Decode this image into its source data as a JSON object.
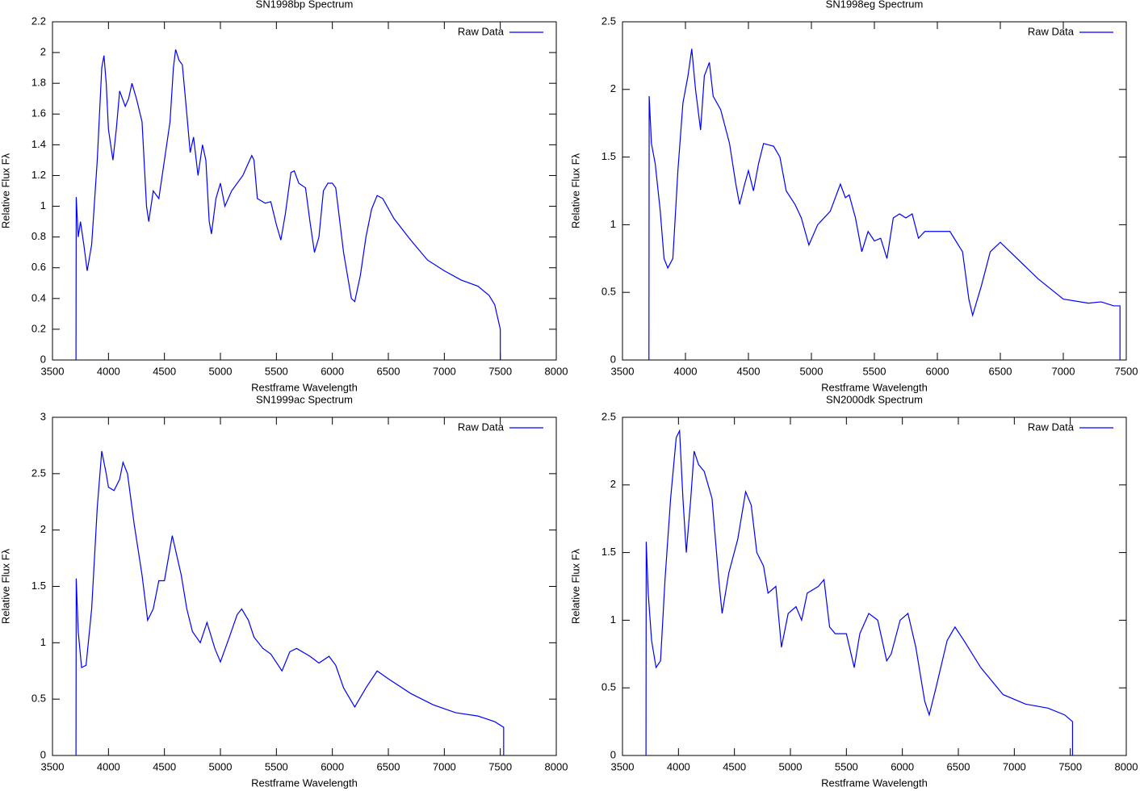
{
  "chart_data": [
    {
      "type": "line",
      "title": "SN1998bp Spectrum",
      "x_label": "Restframe Wavelength",
      "y_label": "Relative Flux Fλ",
      "x": [
        3710,
        3712,
        3730,
        3750,
        3780,
        3810,
        3850,
        3900,
        3940,
        3960,
        3980,
        4000,
        4040,
        4070,
        4100,
        4150,
        4180,
        4210,
        4250,
        4300,
        4340,
        4360,
        4400,
        4450,
        4500,
        4550,
        4580,
        4600,
        4630,
        4660,
        4700,
        4730,
        4760,
        4800,
        4840,
        4870,
        4900,
        4920,
        4960,
        5000,
        5040,
        5100,
        5200,
        5280,
        5300,
        5330,
        5400,
        5450,
        5500,
        5540,
        5580,
        5630,
        5660,
        5700,
        5760,
        5800,
        5840,
        5880,
        5920,
        5960,
        6000,
        6030,
        6100,
        6170,
        6200,
        6250,
        6300,
        6350,
        6400,
        6450,
        6550,
        6700,
        6850,
        7000,
        7150,
        7300,
        7400,
        7450,
        7500,
        7500
      ],
      "series": [
        {
          "name": "Raw Data",
          "color": "#0000ff",
          "values": [
            0,
            1.06,
            0.8,
            0.9,
            0.75,
            0.58,
            0.75,
            1.3,
            1.9,
            1.98,
            1.8,
            1.5,
            1.3,
            1.5,
            1.75,
            1.65,
            1.7,
            1.8,
            1.7,
            1.55,
            1.0,
            0.9,
            1.1,
            1.05,
            1.3,
            1.55,
            1.9,
            2.02,
            1.95,
            1.92,
            1.6,
            1.35,
            1.45,
            1.2,
            1.4,
            1.3,
            0.9,
            0.82,
            1.05,
            1.15,
            1.0,
            1.1,
            1.2,
            1.33,
            1.3,
            1.05,
            1.02,
            1.03,
            0.88,
            0.78,
            0.95,
            1.22,
            1.23,
            1.15,
            1.12,
            0.9,
            0.7,
            0.8,
            1.1,
            1.15,
            1.15,
            1.12,
            0.7,
            0.4,
            0.38,
            0.55,
            0.8,
            0.98,
            1.07,
            1.05,
            0.92,
            0.78,
            0.65,
            0.58,
            0.52,
            0.48,
            0.42,
            0.36,
            0.2,
            0
          ]
        }
      ],
      "xlim": [
        3500,
        8000
      ],
      "ylim": [
        0,
        2.2
      ],
      "xticks": [
        3500,
        4000,
        4500,
        5000,
        5500,
        6000,
        6500,
        7000,
        7500,
        8000
      ],
      "yticks": [
        0,
        0.2,
        0.4,
        0.6,
        0.8,
        1,
        1.2,
        1.4,
        1.6,
        1.8,
        2,
        2.2
      ],
      "legend": "upper right"
    },
    {
      "type": "line",
      "title": "SN1998eg Spectrum",
      "x_label": "Restframe Wavelength",
      "y_label": "Relative Flux Fλ",
      "x": [
        3710,
        3712,
        3730,
        3760,
        3800,
        3830,
        3860,
        3900,
        3940,
        3980,
        4020,
        4050,
        4080,
        4120,
        4150,
        4190,
        4220,
        4280,
        4350,
        4400,
        4430,
        4470,
        4500,
        4540,
        4580,
        4620,
        4700,
        4750,
        4800,
        4870,
        4920,
        4980,
        5050,
        5150,
        5230,
        5270,
        5300,
        5350,
        5400,
        5450,
        5500,
        5550,
        5600,
        5650,
        5700,
        5750,
        5800,
        5850,
        5900,
        6000,
        6100,
        6200,
        6250,
        6280,
        6350,
        6420,
        6500,
        6600,
        6800,
        7000,
        7200,
        7300,
        7400,
        7450,
        7450
      ],
      "series": [
        {
          "name": "Raw Data",
          "color": "#0000ff",
          "values": [
            0,
            1.95,
            1.6,
            1.45,
            1.1,
            0.75,
            0.68,
            0.75,
            1.4,
            1.9,
            2.1,
            2.3,
            2.0,
            1.7,
            2.1,
            2.2,
            1.95,
            1.85,
            1.6,
            1.3,
            1.15,
            1.3,
            1.4,
            1.25,
            1.45,
            1.6,
            1.58,
            1.5,
            1.25,
            1.15,
            1.05,
            0.85,
            1.0,
            1.1,
            1.3,
            1.2,
            1.22,
            1.05,
            0.8,
            0.95,
            0.88,
            0.9,
            0.75,
            1.05,
            1.08,
            1.05,
            1.08,
            0.9,
            0.95,
            0.95,
            0.95,
            0.8,
            0.45,
            0.33,
            0.55,
            0.8,
            0.87,
            0.78,
            0.6,
            0.45,
            0.42,
            0.43,
            0.4,
            0.4,
            0
          ]
        }
      ],
      "xlim": [
        3500,
        7500
      ],
      "ylim": [
        0,
        2.5
      ],
      "xticks": [
        3500,
        4000,
        4500,
        5000,
        5500,
        6000,
        6500,
        7000,
        7500
      ],
      "yticks": [
        0,
        0.5,
        1,
        1.5,
        2,
        2.5
      ],
      "legend": "upper right"
    },
    {
      "type": "line",
      "title": "SN1999ac Spectrum",
      "x_label": "Restframe Wavelength",
      "y_label": "Relative Flux Fλ",
      "x": [
        3710,
        3712,
        3730,
        3760,
        3800,
        3850,
        3900,
        3940,
        3980,
        4000,
        4050,
        4100,
        4130,
        4170,
        4230,
        4300,
        4350,
        4400,
        4450,
        4500,
        4570,
        4650,
        4700,
        4750,
        4820,
        4880,
        4950,
        5000,
        5080,
        5150,
        5190,
        5250,
        5300,
        5380,
        5450,
        5550,
        5620,
        5680,
        5800,
        5880,
        5970,
        6030,
        6100,
        6200,
        6300,
        6400,
        6500,
        6700,
        6900,
        7100,
        7300,
        7450,
        7530,
        7530
      ],
      "series": [
        {
          "name": "Raw Data",
          "color": "#0000ff",
          "values": [
            0,
            1.57,
            1.1,
            0.78,
            0.8,
            1.3,
            2.2,
            2.7,
            2.5,
            2.38,
            2.35,
            2.45,
            2.6,
            2.5,
            2.05,
            1.6,
            1.2,
            1.3,
            1.55,
            1.55,
            1.95,
            1.6,
            1.3,
            1.1,
            1.0,
            1.18,
            0.95,
            0.83,
            1.05,
            1.25,
            1.3,
            1.2,
            1.05,
            0.95,
            0.9,
            0.75,
            0.92,
            0.95,
            0.88,
            0.82,
            0.88,
            0.8,
            0.6,
            0.43,
            0.6,
            0.75,
            0.68,
            0.55,
            0.45,
            0.38,
            0.35,
            0.3,
            0.25,
            0
          ]
        }
      ],
      "xlim": [
        3500,
        8000
      ],
      "ylim": [
        0,
        3
      ],
      "xticks": [
        3500,
        4000,
        4500,
        5000,
        5500,
        6000,
        6500,
        7000,
        7500,
        8000
      ],
      "yticks": [
        0,
        0.5,
        1,
        1.5,
        2,
        2.5,
        3
      ],
      "legend": "upper right"
    },
    {
      "type": "line",
      "title": "SN2000dk Spectrum",
      "x_label": "Restframe Wavelength",
      "y_label": "Relative Flux Fλ",
      "x": [
        3710,
        3712,
        3730,
        3760,
        3800,
        3840,
        3880,
        3930,
        3980,
        4010,
        4040,
        4070,
        4110,
        4140,
        4180,
        4230,
        4300,
        4360,
        4390,
        4450,
        4530,
        4600,
        4650,
        4700,
        4760,
        4800,
        4870,
        4920,
        4980,
        5050,
        5100,
        5150,
        5250,
        5300,
        5350,
        5400,
        5500,
        5570,
        5620,
        5700,
        5780,
        5860,
        5900,
        5980,
        6050,
        6120,
        6200,
        6240,
        6300,
        6400,
        6470,
        6550,
        6700,
        6900,
        7100,
        7300,
        7450,
        7520,
        7520
      ],
      "series": [
        {
          "name": "Raw Data",
          "color": "#0000ff",
          "values": [
            0,
            1.58,
            1.2,
            0.85,
            0.65,
            0.7,
            1.3,
            1.9,
            2.35,
            2.4,
            1.9,
            1.5,
            1.9,
            2.25,
            2.15,
            2.1,
            1.9,
            1.3,
            1.05,
            1.35,
            1.6,
            1.95,
            1.85,
            1.5,
            1.4,
            1.2,
            1.25,
            0.8,
            1.05,
            1.1,
            1.0,
            1.2,
            1.25,
            1.3,
            0.95,
            0.9,
            0.9,
            0.65,
            0.9,
            1.05,
            1.0,
            0.7,
            0.75,
            1.0,
            1.05,
            0.8,
            0.4,
            0.3,
            0.5,
            0.85,
            0.95,
            0.85,
            0.65,
            0.45,
            0.38,
            0.35,
            0.3,
            0.25,
            0
          ]
        }
      ],
      "xlim": [
        3500,
        8000
      ],
      "ylim": [
        0,
        2.5
      ],
      "xticks": [
        3500,
        4000,
        4500,
        5000,
        5500,
        6000,
        6500,
        7000,
        7500,
        8000
      ],
      "yticks": [
        0,
        0.5,
        1,
        1.5,
        2,
        2.5
      ],
      "legend": "upper right"
    }
  ]
}
